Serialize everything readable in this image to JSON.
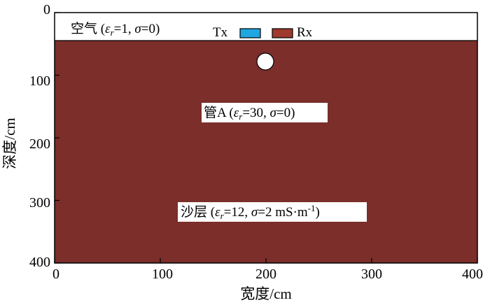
{
  "axes": {
    "xlabel": "宽度/cm",
    "ylabel": "深度/cm",
    "x_ticks": [
      "0",
      "100",
      "200",
      "300",
      "400"
    ],
    "y_ticks": [
      "0",
      "100",
      "200",
      "300",
      "400"
    ],
    "x_range": [
      0,
      400
    ],
    "y_range": [
      0,
      400
    ],
    "y_direction": "downward"
  },
  "colors": {
    "soil": "#7b2e2a",
    "air": "#ffffff",
    "tx": "#1ea7e0",
    "rx": "#a0392d",
    "pipe": "#ffffff"
  },
  "model": {
    "air_layer": {
      "depth_range_cm": [
        0,
        42
      ]
    },
    "pipe": {
      "center_x_cm": 200,
      "center_depth_cm": 70
    },
    "tx_antenna": {
      "label": "Tx",
      "x_range_cm": [
        176,
        196
      ]
    },
    "rx_antenna": {
      "label": "Rx",
      "x_range_cm": [
        207,
        227
      ]
    }
  },
  "labels": {
    "air": {
      "name": "空气 (",
      "eps": "ε",
      "eps_sub": "r",
      "eps_val": "=1, ",
      "sigma": "σ",
      "sigma_val": "=0)"
    },
    "pipe": {
      "name": "管A (",
      "eps": "ε",
      "eps_sub": "r",
      "eps_val": "=30, ",
      "sigma": "σ",
      "sigma_val": "=0)"
    },
    "sand": {
      "name": "沙层 (",
      "eps": "ε",
      "eps_sub": "r",
      "eps_val": "=12, ",
      "sigma": "σ",
      "sigma_val": "=2 mS·m",
      "sigma_sup": "-1",
      "close": ")"
    }
  }
}
